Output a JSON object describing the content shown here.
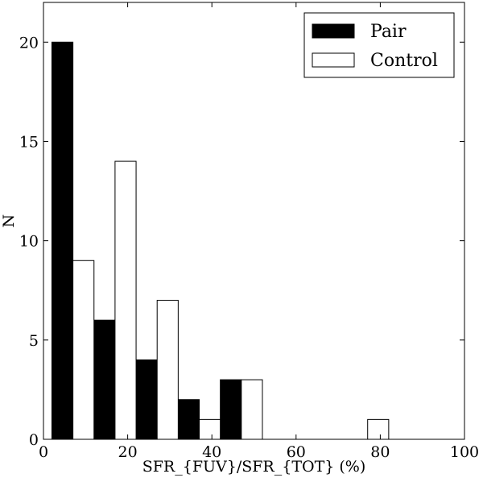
{
  "chart_data": {
    "type": "bar",
    "xlabel": "SFR_{FUV}/SFR_{TOT} (%)",
    "ylabel": "N",
    "xlim": [
      0,
      100
    ],
    "ylim": [
      0,
      22
    ],
    "xticks": [
      0,
      20,
      40,
      60,
      80,
      100
    ],
    "yticks": [
      0,
      5,
      10,
      15,
      20
    ],
    "grid": false,
    "legend_position": "top-right",
    "bin_starts": [
      2,
      12,
      22,
      32,
      42,
      52,
      62,
      72,
      82,
      92
    ],
    "bin_width": 10,
    "series": [
      {
        "name": "Pair",
        "color": "#000000",
        "values": [
          20,
          6,
          4,
          2,
          3,
          0,
          0,
          0,
          0,
          0
        ]
      },
      {
        "name": "Control",
        "color": "#ffffff",
        "values": [
          9,
          14,
          7,
          1,
          3,
          0,
          0,
          1,
          0,
          0
        ]
      }
    ]
  }
}
